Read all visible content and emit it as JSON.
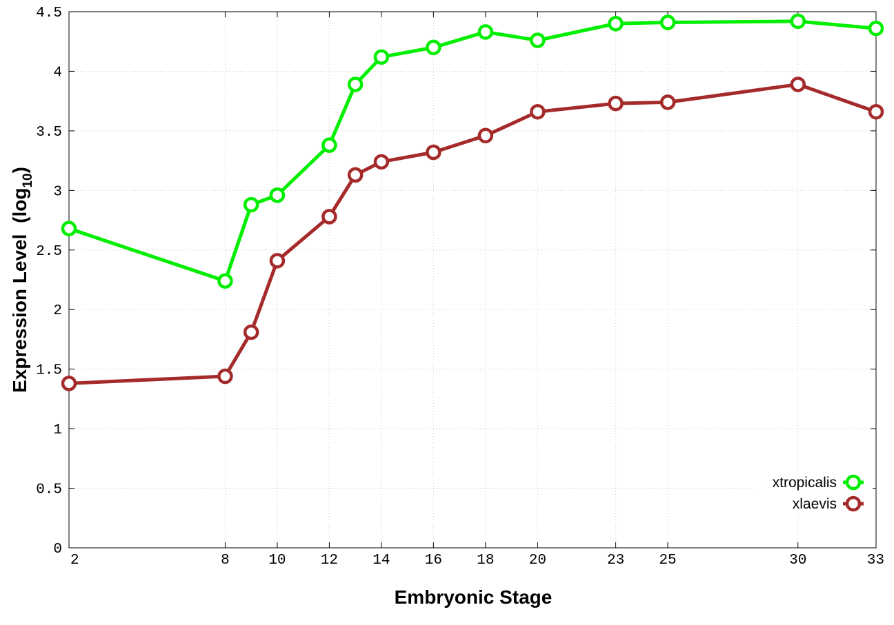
{
  "chart_data": {
    "type": "line",
    "xlabel": "Embryonic Stage",
    "ylabel": "Expression Level",
    "ylabel_sub": "10",
    "ylabel_prefix": "(log",
    "ylabel_suffix": ")",
    "ylim": [
      0,
      4.5
    ],
    "yticks": [
      0,
      0.5,
      1,
      1.5,
      2,
      2.5,
      3,
      3.5,
      4,
      4.5
    ],
    "ytick_labels": [
      "0",
      "0.5",
      "1",
      "1.5",
      "2",
      "2.5",
      "3",
      "3.5",
      "4",
      "4.5"
    ],
    "categories": [
      "2",
      "8",
      "9",
      "10",
      "12",
      "13",
      "14",
      "16",
      "18",
      "20",
      "23",
      "25",
      "30",
      "33"
    ],
    "xtick_labels": [
      "2",
      "8",
      "10",
      "12",
      "14",
      "16",
      "18",
      "20",
      "23",
      "25",
      "30",
      "33"
    ],
    "grid": true,
    "legend_position": "bottom-right",
    "series": [
      {
        "name": "xtropicalis",
        "color": "#00ee00",
        "values": [
          2.68,
          2.24,
          2.88,
          2.96,
          3.38,
          3.89,
          4.12,
          4.2,
          4.33,
          4.26,
          4.4,
          4.41,
          4.42,
          4.36
        ]
      },
      {
        "name": "xlaevis",
        "color": "#a52a2a",
        "values": [
          1.38,
          1.44,
          1.81,
          2.41,
          2.78,
          3.13,
          3.24,
          3.32,
          3.46,
          3.66,
          3.73,
          3.74,
          3.89,
          3.66
        ]
      }
    ]
  }
}
